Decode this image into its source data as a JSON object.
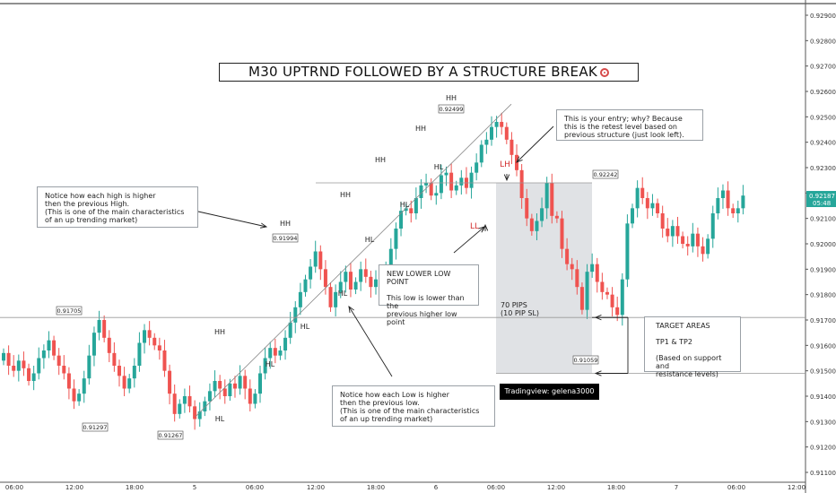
{
  "title": "M30 UPTRND FOLLOWED BY A STRUCTURE BREAK",
  "title_icon": "target-icon",
  "colors": {
    "up": "#26a69a",
    "down": "#ef5350",
    "zone": "#d6d8dc",
    "trendline": "#888888",
    "label_red": "#d32f2f"
  },
  "notes": {
    "higher_high": "Notice how each high is higher\nthen the previous High.\n(This is one of the main characteristics\nof an up trending market)",
    "entry": "This is your entry; why? Because\nthis is the retest level based on\nprevious structure (just look left).",
    "lower_low": "NEW LOWER LOW POINT\n\nThis low is lower than the\nprevious higher low point",
    "higher_low": "Notice how each Low is higher\nthen the previous low.\n(This is one of the main characteristics\nof an up trending market)",
    "targets": "TARGET AREAS\n\nTP1 & TP2\n\n(Based on support and\nresistance levels)"
  },
  "pips_label": "70 PIPS\n(10 PIP SL)",
  "watermark": "Tradingview: gelena3000",
  "chart_data": {
    "type": "candlestick",
    "timeframe": "M30",
    "ylim": [
      0.9105,
      0.9295
    ],
    "y_ticks": [
      "0.91100",
      "0.91200",
      "0.91300",
      "0.91400",
      "0.91500",
      "0.91600",
      "0.91700",
      "0.91800",
      "0.91900",
      "0.92000",
      "0.92100",
      "0.92200",
      "0.92300",
      "0.92400",
      "0.92500",
      "0.92600",
      "0.92700",
      "0.92800",
      "0.92900"
    ],
    "x_ticks": [
      "06:00",
      "12:00",
      "18:00",
      "5",
      "06:00",
      "12:00",
      "18:00",
      "6",
      "06:00",
      "12:00",
      "18:00",
      "7",
      "06:00",
      "12:00"
    ],
    "closes": [
      0.9157,
      0.9152,
      0.915,
      0.9154,
      0.9151,
      0.9146,
      0.9149,
      0.9155,
      0.9158,
      0.9162,
      0.9156,
      0.9152,
      0.9149,
      0.9143,
      0.9138,
      0.9141,
      0.9147,
      0.9156,
      0.9165,
      0.917,
      0.9163,
      0.9157,
      0.9152,
      0.9148,
      0.9143,
      0.9147,
      0.9152,
      0.9161,
      0.9166,
      0.9163,
      0.916,
      0.9158,
      0.915,
      0.9141,
      0.9133,
      0.9137,
      0.914,
      0.9136,
      0.9131,
      0.9134,
      0.9138,
      0.9142,
      0.9146,
      0.9143,
      0.914,
      0.9145,
      0.9143,
      0.9148,
      0.9143,
      0.9137,
      0.9141,
      0.9149,
      0.9155,
      0.9159,
      0.9156,
      0.9158,
      0.9163,
      0.9169,
      0.9175,
      0.9181,
      0.9186,
      0.9191,
      0.9197,
      0.919,
      0.9183,
      0.9175,
      0.9181,
      0.9185,
      0.9189,
      0.9182,
      0.9185,
      0.919,
      0.9187,
      0.9183,
      0.9186,
      0.9182,
      0.919,
      0.9198,
      0.9206,
      0.9213,
      0.9214,
      0.9212,
      0.9218,
      0.9223,
      0.9224,
      0.9219,
      0.922,
      0.9227,
      0.9228,
      0.9221,
      0.9223,
      0.9226,
      0.9222,
      0.9228,
      0.9232,
      0.9239,
      0.9241,
      0.9246,
      0.9248,
      0.9246,
      0.9241,
      0.9235,
      0.9229,
      0.9218,
      0.921,
      0.9205,
      0.9209,
      0.9214,
      0.9224,
      0.9211,
      0.921,
      0.9198,
      0.9192,
      0.919,
      0.9183,
      0.9174,
      0.9189,
      0.9192,
      0.9185,
      0.9181,
      0.918,
      0.9175,
      0.9172,
      0.9186,
      0.9208,
      0.9214,
      0.9222,
      0.9218,
      0.9214,
      0.9216,
      0.9212,
      0.9206,
      0.9203,
      0.9207,
      0.9203,
      0.92,
      0.9199,
      0.9204,
      0.9199,
      0.9196,
      0.9202,
      0.9212,
      0.9218,
      0.9221,
      0.9214,
      0.9212,
      0.9214,
      0.9219
    ],
    "swing_labels": [
      {
        "text": "HH",
        "price": 0.92499,
        "box": "0.92499"
      },
      {
        "text": "HH",
        "price": 0.9235
      },
      {
        "text": "HH",
        "price": 0.9226
      },
      {
        "text": "HH",
        "price": 0.9217
      },
      {
        "text": "HH",
        "price": 0.91994,
        "box": "0.91994"
      },
      {
        "text": "HH",
        "price": 0.9166
      },
      {
        "text": "HL",
        "price": 0.9231
      },
      {
        "text": "HL",
        "price": 0.9212
      },
      {
        "text": "HL",
        "price": 0.9199
      },
      {
        "text": "HL",
        "price": 0.9182
      },
      {
        "text": "HL",
        "price": 0.9167
      },
      {
        "text": "HL",
        "price": 0.915
      },
      {
        "text": "HL",
        "price": 0.9133
      },
      {
        "text": "LH",
        "price": 0.9228
      },
      {
        "text": "LL",
        "price": 0.9206
      }
    ],
    "price_boxes": [
      "0.91705",
      "0.91297",
      "0.91267",
      "0.92242",
      "0.91994",
      "0.91059"
    ],
    "last_price": "0.92187",
    "countdown": "05:48"
  }
}
